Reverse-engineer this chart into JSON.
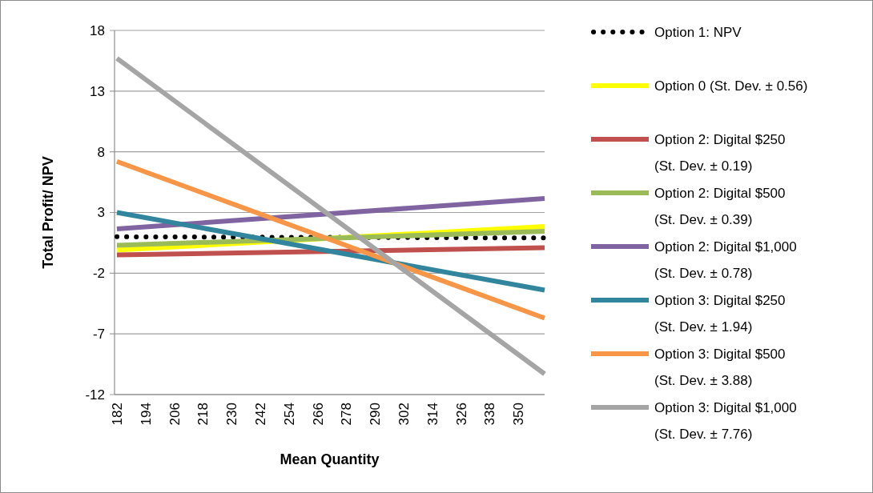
{
  "chart_data": {
    "type": "line",
    "xlabel": "Mean Quantity",
    "ylabel": "Total Profit/ NPV",
    "xlim": [
      181,
      361
    ],
    "xticks": [
      182,
      194,
      206,
      218,
      230,
      242,
      254,
      266,
      278,
      290,
      302,
      314,
      326,
      338,
      350
    ],
    "ylim": [
      -12,
      18
    ],
    "yticks": [
      -12,
      -7,
      -2,
      3,
      8,
      13,
      18
    ],
    "grid": "y",
    "legend": "right",
    "x": [
      182,
      361
    ],
    "series": [
      {
        "name": "Option 1: NPV",
        "color": "#000000",
        "line_style": "dotted",
        "values": [
          1.0,
          0.9
        ]
      },
      {
        "name": "Option 0 (St. Dev. ± 0.56)",
        "color": "#ffff00",
        "values": [
          -0.1,
          1.85
        ]
      },
      {
        "name": "Option 2: Digital $250 (St. Dev. ± 0.19)",
        "color": "#c0504d",
        "values": [
          -0.5,
          0.1
        ]
      },
      {
        "name": "Option 2: Digital $500 (St. Dev. ± 0.39)",
        "color": "#9bbb59",
        "values": [
          0.3,
          1.45
        ]
      },
      {
        "name": "Option 2: Digital $1,000 (St. Dev. ± 0.78)",
        "color": "#8064a2",
        "values": [
          1.65,
          4.15
        ]
      },
      {
        "name": "Option 3: Digital $250 (St. Dev. ± 1.94)",
        "color": "#31859c",
        "values": [
          3.0,
          -3.4
        ]
      },
      {
        "name": "Option 3: Digital $500 (St. Dev. ± 3.88)",
        "color": "#f79646",
        "values": [
          7.2,
          -5.7
        ]
      },
      {
        "name": "Option 3: Digital $1,000 (St. Dev. ± 7.76)",
        "color": "#a5a5a5",
        "values": [
          15.7,
          -10.3
        ]
      }
    ]
  }
}
